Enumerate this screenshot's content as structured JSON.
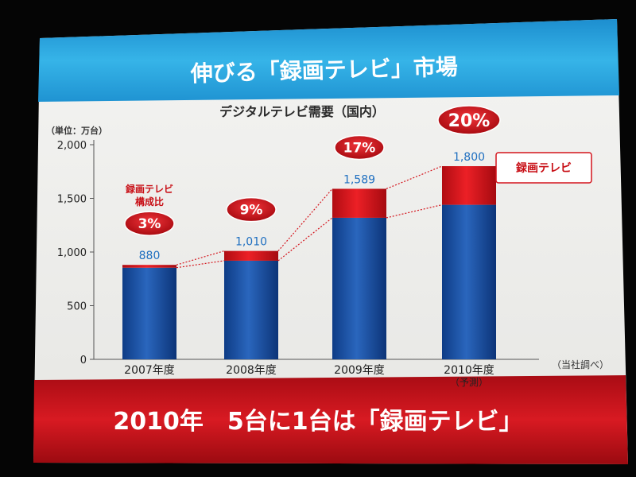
{
  "slide": {
    "header_title": "伸びる「録画テレビ」市場",
    "footer_text": "2010年　5台に1台は「録画テレビ」",
    "colors": {
      "header_bg": "#2aa6df",
      "footer_bg": "#c4101a",
      "bar_blue": "#1a4fa0",
      "bar_red": "#d4141c",
      "badge_red": "#c80f16",
      "label_blue": "#1f6fc0"
    }
  },
  "chart_data": {
    "type": "bar",
    "stacked": true,
    "title": "デジタルテレビ需要（国内）",
    "unit_label": "（単位：万台）",
    "source_note": "（当社調べ）",
    "categories": [
      "2007年度",
      "2008年度",
      "2009年度",
      "2010年度"
    ],
    "category_sublabels": [
      "",
      "",
      "",
      "（予測）"
    ],
    "totals": [
      880,
      1010,
      1589,
      1800
    ],
    "total_labels": [
      "880",
      "1,010",
      "1,589",
      "1,800"
    ],
    "ratio_labels": [
      "3%",
      "9%",
      "17%",
      "20%"
    ],
    "series": [
      {
        "values": [
          854,
          919,
          1319,
          1440
        ]
      },
      {
        "name": "録画テレビ",
        "values": [
          26,
          91,
          270,
          360
        ]
      }
    ],
    "ratio_caption": "録画テレビ構成比",
    "ratio_caption_lines": [
      "録画テレビ",
      "構成比"
    ],
    "yticks": [
      0,
      500,
      1000,
      1500,
      2000
    ],
    "ytick_labels": [
      "0",
      "500",
      "1,000",
      "1,500",
      "2,000"
    ],
    "ylim": [
      0,
      2000
    ],
    "grid": false,
    "legend": "right"
  }
}
